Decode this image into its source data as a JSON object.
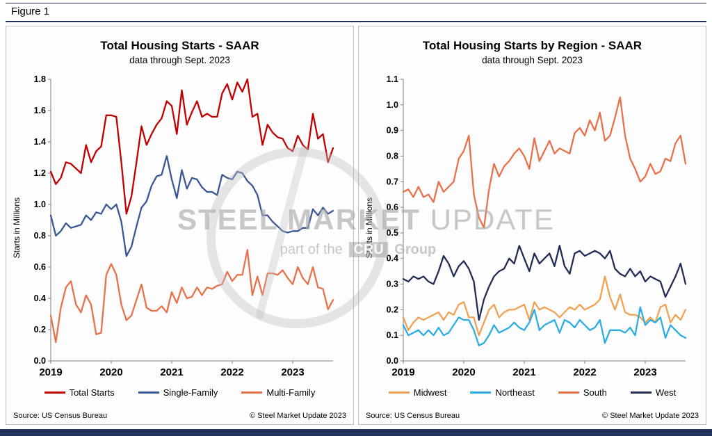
{
  "figure_label": "Figure 1",
  "colors": {
    "accent_navy": "#20315A",
    "panel_border": "#BFBFBF",
    "axis": "#808080"
  },
  "watermark": {
    "brand_bold": "STEEL MARKET",
    "brand_light": "UPDATE",
    "tagline_pre": "part of the",
    "tagline_badge": "CRU",
    "tagline_post": "Group"
  },
  "chart_data": [
    {
      "type": "line",
      "title": "Total Housing Starts - SAAR",
      "subtitle": "data through Sept. 2023",
      "ylabel": "Starts in Millions",
      "xlabel": "",
      "x_unit": "month",
      "x_start": "2019-01",
      "x_end": "2023-09",
      "year_labels": [
        "2019",
        "2020",
        "2021",
        "2022",
        "2023"
      ],
      "ylim": [
        0.0,
        1.8
      ],
      "ytick_step": 0.2,
      "grid": false,
      "legend_position": "bottom",
      "source": "Source: US Census Bureau",
      "copyright": "© Steel Market Update 2023",
      "series": [
        {
          "name": "Total Starts",
          "color": "#C00000",
          "values": [
            1.21,
            1.13,
            1.17,
            1.27,
            1.26,
            1.23,
            1.2,
            1.38,
            1.27,
            1.34,
            1.37,
            1.57,
            1.57,
            1.56,
            1.27,
            0.94,
            1.05,
            1.27,
            1.5,
            1.38,
            1.45,
            1.51,
            1.55,
            1.66,
            1.63,
            1.45,
            1.73,
            1.51,
            1.59,
            1.66,
            1.56,
            1.58,
            1.56,
            1.56,
            1.71,
            1.77,
            1.67,
            1.78,
            1.72,
            1.8,
            1.56,
            1.58,
            1.38,
            1.51,
            1.46,
            1.43,
            1.42,
            1.36,
            1.34,
            1.44,
            1.38,
            1.35,
            1.58,
            1.42,
            1.45,
            1.27,
            1.36
          ]
        },
        {
          "name": "Single-Family",
          "color": "#3A5795",
          "values": [
            0.93,
            0.8,
            0.83,
            0.88,
            0.85,
            0.86,
            0.87,
            0.93,
            0.9,
            0.95,
            0.94,
            1.0,
            0.97,
            1.0,
            0.89,
            0.67,
            0.73,
            0.86,
            0.98,
            1.02,
            1.12,
            1.18,
            1.19,
            1.31,
            1.16,
            1.04,
            1.22,
            1.1,
            1.17,
            1.16,
            1.11,
            1.08,
            1.08,
            1.06,
            1.19,
            1.17,
            1.16,
            1.21,
            1.2,
            1.15,
            1.12,
            1.06,
            0.93,
            0.93,
            0.89,
            0.86,
            0.83,
            0.82,
            0.83,
            0.83,
            0.85,
            0.85,
            0.97,
            0.93,
            0.98,
            0.94,
            0.96
          ]
        },
        {
          "name": "Multi-Family",
          "color": "#E8714A",
          "values": [
            0.29,
            0.12,
            0.34,
            0.47,
            0.51,
            0.36,
            0.31,
            0.42,
            0.36,
            0.17,
            0.18,
            0.55,
            0.62,
            0.55,
            0.36,
            0.26,
            0.29,
            0.39,
            0.49,
            0.34,
            0.32,
            0.32,
            0.35,
            0.31,
            0.44,
            0.37,
            0.47,
            0.4,
            0.41,
            0.47,
            0.42,
            0.47,
            0.46,
            0.48,
            0.49,
            0.57,
            0.51,
            0.55,
            0.55,
            0.71,
            0.42,
            0.54,
            0.42,
            0.56,
            0.56,
            0.55,
            0.58,
            0.53,
            0.49,
            0.6,
            0.53,
            0.49,
            0.6,
            0.47,
            0.46,
            0.33,
            0.39
          ]
        }
      ]
    },
    {
      "type": "line",
      "title": "Total Housing Starts by Region - SAAR",
      "subtitle": "data through Sept. 2023",
      "ylabel": "Starts in Millions",
      "xlabel": "",
      "x_unit": "month",
      "x_start": "2019-01",
      "x_end": "2023-09",
      "year_labels": [
        "2019",
        "2020",
        "2021",
        "2022",
        "2023"
      ],
      "ylim": [
        0.0,
        1.1
      ],
      "ytick_step": 0.1,
      "grid": false,
      "legend_position": "bottom",
      "source": "Source: US Census Bureau",
      "copyright": "© Steel Market Update 2023",
      "series": [
        {
          "name": "Midwest",
          "color": "#F0A152",
          "values": [
            0.17,
            0.12,
            0.15,
            0.17,
            0.16,
            0.17,
            0.18,
            0.19,
            0.16,
            0.19,
            0.18,
            0.22,
            0.23,
            0.17,
            0.17,
            0.1,
            0.15,
            0.2,
            0.22,
            0.17,
            0.19,
            0.2,
            0.2,
            0.21,
            0.22,
            0.16,
            0.23,
            0.2,
            0.21,
            0.2,
            0.19,
            0.17,
            0.19,
            0.21,
            0.2,
            0.22,
            0.2,
            0.21,
            0.22,
            0.24,
            0.33,
            0.25,
            0.2,
            0.26,
            0.19,
            0.18,
            0.18,
            0.17,
            0.15,
            0.17,
            0.15,
            0.21,
            0.22,
            0.15,
            0.18,
            0.16,
            0.2
          ]
        },
        {
          "name": "Northeast",
          "color": "#2BACE2",
          "values": [
            0.14,
            0.1,
            0.11,
            0.12,
            0.1,
            0.12,
            0.1,
            0.13,
            0.1,
            0.11,
            0.14,
            0.17,
            0.16,
            0.16,
            0.12,
            0.06,
            0.07,
            0.1,
            0.14,
            0.11,
            0.12,
            0.13,
            0.15,
            0.13,
            0.12,
            0.15,
            0.2,
            0.12,
            0.14,
            0.15,
            0.16,
            0.11,
            0.16,
            0.15,
            0.13,
            0.16,
            0.14,
            0.12,
            0.13,
            0.16,
            0.07,
            0.12,
            0.12,
            0.12,
            0.11,
            0.13,
            0.1,
            0.21,
            0.14,
            0.16,
            0.15,
            0.17,
            0.09,
            0.14,
            0.12,
            0.1,
            0.09
          ]
        },
        {
          "name": "South",
          "color": "#E8714A",
          "values": [
            0.66,
            0.67,
            0.64,
            0.68,
            0.64,
            0.65,
            0.62,
            0.7,
            0.66,
            0.68,
            0.7,
            0.79,
            0.82,
            0.88,
            0.65,
            0.56,
            0.52,
            0.67,
            0.77,
            0.72,
            0.76,
            0.78,
            0.81,
            0.83,
            0.8,
            0.75,
            0.87,
            0.78,
            0.82,
            0.86,
            0.81,
            0.83,
            0.82,
            0.81,
            0.89,
            0.91,
            0.88,
            0.94,
            0.9,
            0.97,
            0.86,
            0.88,
            0.95,
            1.03,
            0.88,
            0.79,
            0.75,
            0.7,
            0.72,
            0.77,
            0.73,
            0.74,
            0.79,
            0.78,
            0.85,
            0.88,
            0.77
          ]
        },
        {
          "name": "West",
          "color": "#1F2C55",
          "values": [
            0.32,
            0.31,
            0.33,
            0.32,
            0.33,
            0.31,
            0.3,
            0.35,
            0.41,
            0.38,
            0.33,
            0.37,
            0.39,
            0.36,
            0.31,
            0.16,
            0.24,
            0.29,
            0.33,
            0.35,
            0.36,
            0.4,
            0.38,
            0.45,
            0.4,
            0.35,
            0.42,
            0.38,
            0.4,
            0.42,
            0.37,
            0.45,
            0.37,
            0.34,
            0.42,
            0.43,
            0.41,
            0.42,
            0.43,
            0.42,
            0.4,
            0.43,
            0.36,
            0.34,
            0.33,
            0.36,
            0.33,
            0.35,
            0.31,
            0.33,
            0.32,
            0.31,
            0.25,
            0.29,
            0.33,
            0.38,
            0.3
          ]
        }
      ]
    }
  ]
}
